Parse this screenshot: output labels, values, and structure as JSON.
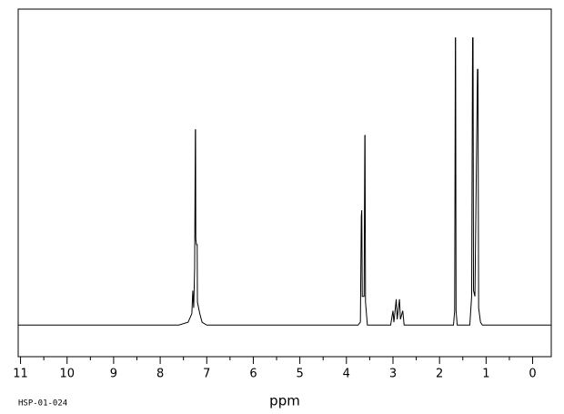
{
  "chart_data": {
    "type": "line",
    "x_label": "ppm",
    "annotation": "HSP-01-024",
    "color": "#000000",
    "xlim": [
      11.05,
      -0.4
    ],
    "ylim": [
      -11,
      110
    ],
    "xticks": [
      11,
      10,
      9,
      8,
      7,
      6,
      5,
      4,
      3,
      2,
      1,
      0
    ],
    "xminorticks": [
      10.5,
      9.5,
      8.5,
      7.5,
      6.5,
      5.5,
      4.5,
      3.5,
      2.5,
      1.5,
      0.5
    ],
    "x": [
      11.05,
      7.6,
      7.4,
      7.32,
      7.3,
      7.28,
      7.26,
      7.245,
      7.24,
      7.235,
      7.22,
      7.205,
      7.2,
      7.15,
      7.1,
      7.0,
      3.75,
      3.7,
      3.68,
      3.67,
      3.66,
      3.62,
      3.605,
      3.6,
      3.59,
      3.55,
      3.05,
      3.0,
      2.98,
      2.93,
      2.91,
      2.86,
      2.84,
      2.79,
      2.76,
      1.7,
      1.675,
      1.66,
      1.655,
      1.645,
      1.62,
      1.35,
      1.31,
      1.29,
      1.28,
      1.27,
      1.24,
      1.185,
      1.175,
      1.16,
      1.12,
      1.08,
      -0.4
    ],
    "values": [
      0,
      0,
      1,
      4,
      12,
      6,
      20,
      68,
      68,
      30,
      28,
      28,
      8,
      4,
      1,
      0,
      0,
      1,
      38,
      40,
      10,
      10,
      66,
      66,
      8,
      0,
      0,
      5,
      1,
      9,
      2,
      9,
      2,
      5,
      0,
      0,
      5,
      100,
      100,
      5,
      0,
      0,
      10,
      100,
      100,
      12,
      10,
      89,
      89,
      6,
      1,
      0,
      0
    ]
  }
}
